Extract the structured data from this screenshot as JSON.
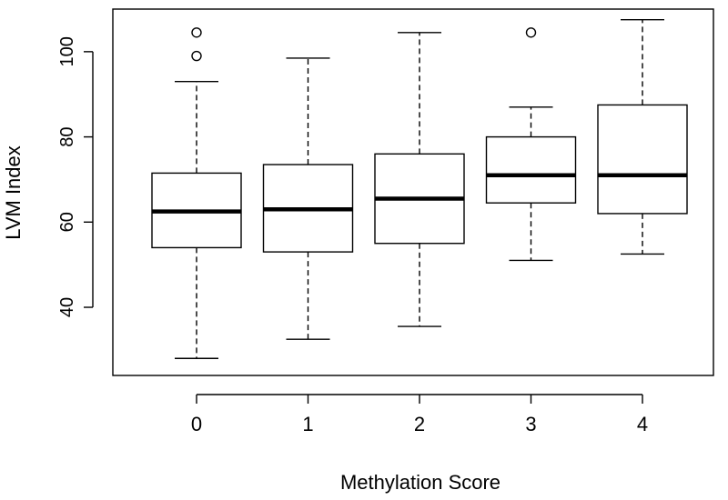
{
  "chart_data": {
    "type": "boxplot",
    "title": "",
    "xlabel": "Methylation Score",
    "ylabel": "LVM Index",
    "categories": [
      "0",
      "1",
      "2",
      "3",
      "4"
    ],
    "ylim": [
      24,
      110
    ],
    "yticks": [
      40,
      60,
      80,
      100
    ],
    "grid": false,
    "boxes": [
      {
        "category": "0",
        "whisker_low": 28,
        "q1": 54,
        "median": 62.5,
        "q3": 71.5,
        "whisker_high": 93,
        "outliers": [
          99,
          104.5
        ]
      },
      {
        "category": "1",
        "whisker_low": 32.5,
        "q1": 53,
        "median": 63,
        "q3": 73.5,
        "whisker_high": 98.5,
        "outliers": []
      },
      {
        "category": "2",
        "whisker_low": 35.5,
        "q1": 55,
        "median": 65.5,
        "q3": 76,
        "whisker_high": 104.5,
        "outliers": []
      },
      {
        "category": "3",
        "whisker_low": 51,
        "q1": 64.5,
        "median": 71,
        "q3": 80,
        "whisker_high": 87,
        "outliers": [
          104.5
        ]
      },
      {
        "category": "4",
        "whisker_low": 52.5,
        "q1": 62,
        "median": 71,
        "q3": 87.5,
        "whisker_high": 107.5,
        "outliers": []
      }
    ]
  }
}
